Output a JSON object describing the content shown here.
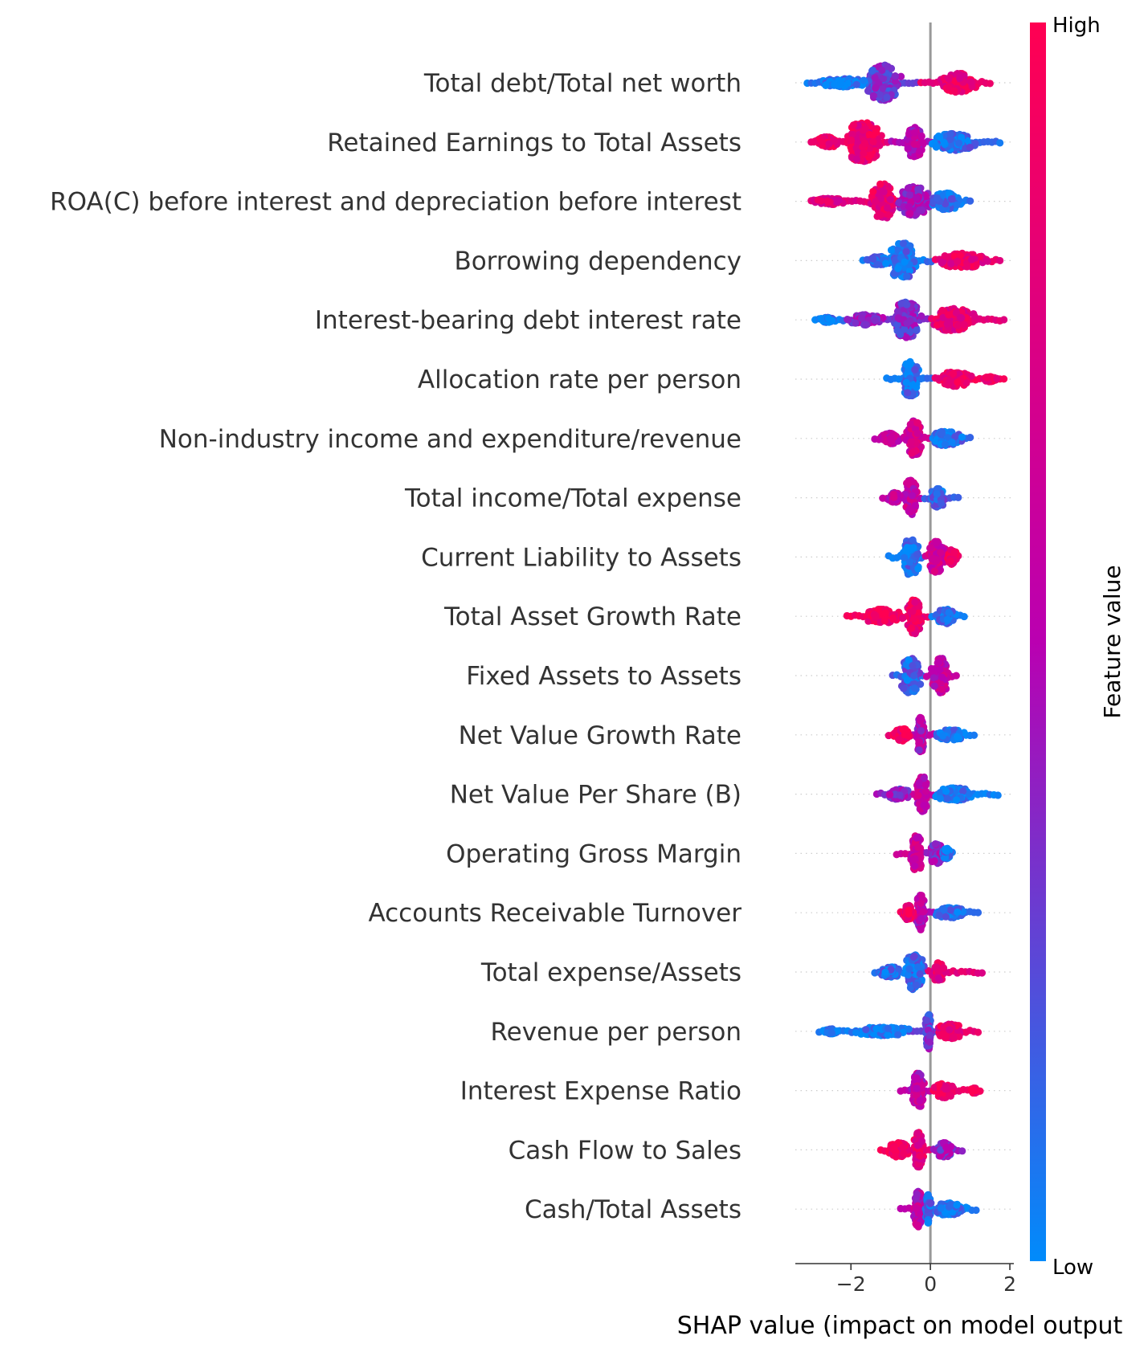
{
  "chart_data": {
    "type": "scatter",
    "subtype": "shap-beeswarm",
    "xlabel": "SHAP value (impact on model output",
    "xlim": [
      -3.4,
      2.1
    ],
    "xticks": [
      {
        "value": -2,
        "label": "−2"
      },
      {
        "value": 0,
        "label": "0"
      },
      {
        "value": 2,
        "label": "2"
      }
    ],
    "colorbar": {
      "title": "Feature value",
      "high_label": "High",
      "low_label": "Low",
      "low_color": "#008bfb",
      "mid_color": "#ba00b1",
      "high_color": "#ff0052"
    },
    "features": [
      {
        "name": "Total debt/Total net worth",
        "min": -3.1,
        "max": 1.5,
        "blobs": [
          {
            "c": -1.2,
            "w": 0.5,
            "h": 0.85,
            "v": 0.3
          },
          {
            "c": 0.7,
            "w": 0.55,
            "h": 0.45,
            "v": 0.85
          },
          {
            "c": -2.2,
            "w": 0.7,
            "h": 0.2,
            "v": 0.05
          }
        ]
      },
      {
        "name": "Retained Earnings to Total Assets",
        "min": -3.0,
        "max": 1.75,
        "blobs": [
          {
            "c": -1.7,
            "w": 0.55,
            "h": 0.95,
            "v": 0.85
          },
          {
            "c": -0.4,
            "w": 0.3,
            "h": 0.75,
            "v": 0.5
          },
          {
            "c": 0.6,
            "w": 0.7,
            "h": 0.4,
            "v": 0.1
          },
          {
            "c": -2.6,
            "w": 0.4,
            "h": 0.25,
            "v": 0.9
          }
        ]
      },
      {
        "name": "ROA(C) before interest and depreciation before interest",
        "min": -3.0,
        "max": 1.0,
        "blobs": [
          {
            "c": -1.2,
            "w": 0.35,
            "h": 0.85,
            "v": 0.85
          },
          {
            "c": -0.4,
            "w": 0.45,
            "h": 0.7,
            "v": 0.45
          },
          {
            "c": 0.4,
            "w": 0.45,
            "h": 0.4,
            "v": 0.08
          },
          {
            "c": -2.5,
            "w": 0.5,
            "h": 0.15,
            "v": 0.75
          }
        ]
      },
      {
        "name": "Borrowing dependency",
        "min": -1.7,
        "max": 1.75,
        "blobs": [
          {
            "c": -0.7,
            "w": 0.45,
            "h": 0.85,
            "v": 0.08
          },
          {
            "c": 0.8,
            "w": 0.7,
            "h": 0.35,
            "v": 0.85
          },
          {
            "c": -1.3,
            "w": 0.3,
            "h": 0.2,
            "v": 0.1
          }
        ]
      },
      {
        "name": "Interest-bearing debt interest rate",
        "min": -2.9,
        "max": 1.85,
        "blobs": [
          {
            "c": -0.6,
            "w": 0.45,
            "h": 0.85,
            "v": 0.35
          },
          {
            "c": 0.6,
            "w": 0.65,
            "h": 0.55,
            "v": 0.8
          },
          {
            "c": -1.6,
            "w": 0.5,
            "h": 0.25,
            "v": 0.4
          },
          {
            "c": -2.6,
            "w": 0.2,
            "h": 0.12,
            "v": 0.05
          }
        ]
      },
      {
        "name": "Allocation rate per person",
        "min": -1.1,
        "max": 1.85,
        "blobs": [
          {
            "c": -0.5,
            "w": 0.28,
            "h": 0.85,
            "v": 0.08
          },
          {
            "c": 0.6,
            "w": 0.5,
            "h": 0.35,
            "v": 0.9
          },
          {
            "c": 1.5,
            "w": 0.2,
            "h": 0.12,
            "v": 0.95
          }
        ]
      },
      {
        "name": "Non-industry income and expenditure/revenue",
        "min": -1.4,
        "max": 1.0,
        "blobs": [
          {
            "c": -0.4,
            "w": 0.22,
            "h": 0.85,
            "v": 0.7
          },
          {
            "c": 0.4,
            "w": 0.45,
            "h": 0.35,
            "v": 0.08
          },
          {
            "c": -1.0,
            "w": 0.3,
            "h": 0.25,
            "v": 0.6
          }
        ]
      },
      {
        "name": "Total income/Total expense",
        "min": -1.2,
        "max": 0.7,
        "blobs": [
          {
            "c": -0.5,
            "w": 0.2,
            "h": 0.85,
            "v": 0.6
          },
          {
            "c": 0.2,
            "w": 0.25,
            "h": 0.45,
            "v": 0.15
          },
          {
            "c": -0.9,
            "w": 0.2,
            "h": 0.25,
            "v": 0.55
          }
        ]
      },
      {
        "name": "Current Liability to Assets",
        "min": -1.05,
        "max": 0.7,
        "blobs": [
          {
            "c": -0.5,
            "w": 0.3,
            "h": 0.85,
            "v": 0.08
          },
          {
            "c": 0.15,
            "w": 0.28,
            "h": 0.75,
            "v": 0.65
          },
          {
            "c": 0.55,
            "w": 0.15,
            "h": 0.35,
            "v": 0.9
          }
        ]
      },
      {
        "name": "Total Asset Growth Rate",
        "min": -2.1,
        "max": 0.85,
        "blobs": [
          {
            "c": -0.4,
            "w": 0.22,
            "h": 0.85,
            "v": 0.85
          },
          {
            "c": -1.2,
            "w": 0.55,
            "h": 0.35,
            "v": 0.95
          },
          {
            "c": 0.4,
            "w": 0.3,
            "h": 0.35,
            "v": 0.08
          }
        ]
      },
      {
        "name": "Fixed Assets to Assets",
        "min": -0.95,
        "max": 0.65,
        "blobs": [
          {
            "c": -0.5,
            "w": 0.3,
            "h": 0.85,
            "v": 0.15
          },
          {
            "c": 0.25,
            "w": 0.25,
            "h": 0.85,
            "v": 0.6
          }
        ]
      },
      {
        "name": "Net Value Growth Rate",
        "min": -1.05,
        "max": 1.1,
        "blobs": [
          {
            "c": -0.25,
            "w": 0.14,
            "h": 0.85,
            "v": 0.5
          },
          {
            "c": -0.7,
            "w": 0.25,
            "h": 0.3,
            "v": 0.9
          },
          {
            "c": 0.5,
            "w": 0.45,
            "h": 0.25,
            "v": 0.05
          }
        ]
      },
      {
        "name": "Net Value Per Share (B)",
        "min": -1.35,
        "max": 1.7,
        "blobs": [
          {
            "c": -0.2,
            "w": 0.18,
            "h": 0.85,
            "v": 0.6
          },
          {
            "c": 0.6,
            "w": 0.6,
            "h": 0.3,
            "v": 0.05
          },
          {
            "c": -0.8,
            "w": 0.35,
            "h": 0.25,
            "v": 0.4
          }
        ]
      },
      {
        "name": "Operating Gross Margin",
        "min": -0.85,
        "max": 0.55,
        "blobs": [
          {
            "c": -0.35,
            "w": 0.2,
            "h": 0.85,
            "v": 0.65
          },
          {
            "c": 0.15,
            "w": 0.2,
            "h": 0.5,
            "v": 0.4
          },
          {
            "c": 0.4,
            "w": 0.12,
            "h": 0.25,
            "v": 0.08
          }
        ]
      },
      {
        "name": "Accounts Receivable Turnover",
        "min": -0.75,
        "max": 1.2,
        "blobs": [
          {
            "c": -0.25,
            "w": 0.14,
            "h": 0.85,
            "v": 0.5
          },
          {
            "c": -0.55,
            "w": 0.15,
            "h": 0.35,
            "v": 0.9
          },
          {
            "c": 0.5,
            "w": 0.45,
            "h": 0.25,
            "v": 0.05
          }
        ]
      },
      {
        "name": "Total expense/Assets",
        "min": -1.4,
        "max": 1.3,
        "blobs": [
          {
            "c": -0.4,
            "w": 0.3,
            "h": 0.85,
            "v": 0.1
          },
          {
            "c": 0.2,
            "w": 0.2,
            "h": 0.45,
            "v": 0.8
          },
          {
            "c": -1.0,
            "w": 0.3,
            "h": 0.25,
            "v": 0.15
          }
        ]
      },
      {
        "name": "Revenue per person",
        "min": -2.8,
        "max": 1.2,
        "blobs": [
          {
            "c": -0.05,
            "w": 0.1,
            "h": 0.85,
            "v": 0.3
          },
          {
            "c": -1.2,
            "w": 0.9,
            "h": 0.2,
            "v": 0.05
          },
          {
            "c": 0.5,
            "w": 0.4,
            "h": 0.35,
            "v": 0.85
          },
          {
            "c": -2.5,
            "w": 0.2,
            "h": 0.12,
            "v": 0.05
          }
        ]
      },
      {
        "name": "Interest Expense Ratio",
        "min": -0.75,
        "max": 1.25,
        "blobs": [
          {
            "c": -0.3,
            "w": 0.2,
            "h": 0.85,
            "v": 0.55
          },
          {
            "c": 0.35,
            "w": 0.3,
            "h": 0.35,
            "v": 0.9
          },
          {
            "c": 1.1,
            "w": 0.1,
            "h": 0.12,
            "v": 0.95
          }
        ]
      },
      {
        "name": "Cash Flow to Sales",
        "min": -1.25,
        "max": 0.8,
        "blobs": [
          {
            "c": -0.3,
            "w": 0.15,
            "h": 0.85,
            "v": 0.8
          },
          {
            "c": -0.8,
            "w": 0.3,
            "h": 0.35,
            "v": 0.95
          },
          {
            "c": 0.35,
            "w": 0.3,
            "h": 0.35,
            "v": 0.4
          }
        ]
      },
      {
        "name": "Cash/Total Assets",
        "min": -0.75,
        "max": 1.15,
        "blobs": [
          {
            "c": -0.3,
            "w": 0.15,
            "h": 0.85,
            "v": 0.55
          },
          {
            "c": 0.5,
            "w": 0.5,
            "h": 0.3,
            "v": 0.05
          },
          {
            "c": -0.05,
            "w": 0.08,
            "h": 0.7,
            "v": 0.1
          }
        ]
      }
    ]
  }
}
